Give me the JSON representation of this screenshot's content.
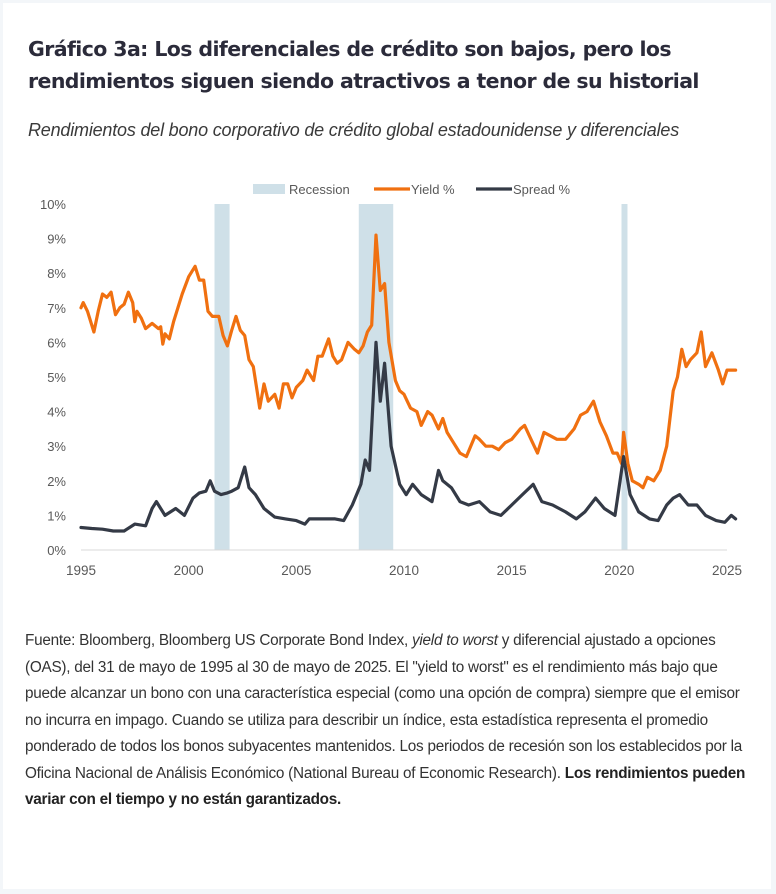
{
  "header": {
    "title": "Gráfico 3a: Los diferenciales de crédito son bajos, pero los rendimientos siguen siendo atractivos a tenor de su historial",
    "subtitle": "Rendimientos del bono corporativo de crédito global estadounidense y diferenciales"
  },
  "colors": {
    "yield": "#f07010",
    "spread": "#343a46",
    "recession": "#cfe0e8",
    "axis_text": "#595959",
    "axis_line": "#d9d9d9"
  },
  "chart_data": {
    "type": "line",
    "title": "",
    "xlabel": "",
    "ylabel": "",
    "xlim": [
      1995,
      2025
    ],
    "ylim": [
      0,
      10
    ],
    "grid": false,
    "legend_position": "top-center",
    "x_ticks": [
      "1995",
      "2000",
      "2005",
      "2010",
      "2015",
      "2020",
      "2025"
    ],
    "y_ticks": [
      "0%",
      "1%",
      "2%",
      "3%",
      "4%",
      "5%",
      "6%",
      "7%",
      "8%",
      "9%",
      "10%"
    ],
    "legend": [
      {
        "name": "Recession",
        "kind": "area"
      },
      {
        "name": "Yield %",
        "kind": "line"
      },
      {
        "name": "Spread %",
        "kind": "line"
      }
    ],
    "recessions": [
      {
        "start": 2001.2,
        "end": 2001.9
      },
      {
        "start": 2007.9,
        "end": 2009.5
      },
      {
        "start": 2020.1,
        "end": 2020.35
      }
    ],
    "series": [
      {
        "name": "Yield %",
        "points": [
          [
            1995.0,
            7.0
          ],
          [
            1995.1,
            7.15
          ],
          [
            1995.3,
            6.9
          ],
          [
            1995.6,
            6.3
          ],
          [
            1995.8,
            6.9
          ],
          [
            1996.0,
            7.4
          ],
          [
            1996.2,
            7.3
          ],
          [
            1996.4,
            7.45
          ],
          [
            1996.6,
            6.8
          ],
          [
            1996.8,
            7.0
          ],
          [
            1997.0,
            7.1
          ],
          [
            1997.2,
            7.45
          ],
          [
            1997.4,
            7.15
          ],
          [
            1997.5,
            6.6
          ],
          [
            1997.6,
            6.9
          ],
          [
            1997.8,
            6.7
          ],
          [
            1998.0,
            6.4
          ],
          [
            1998.3,
            6.55
          ],
          [
            1998.6,
            6.4
          ],
          [
            1998.7,
            6.45
          ],
          [
            1998.8,
            5.95
          ],
          [
            1998.9,
            6.25
          ],
          [
            1999.1,
            6.1
          ],
          [
            1999.3,
            6.6
          ],
          [
            1999.5,
            7.0
          ],
          [
            1999.7,
            7.4
          ],
          [
            2000.0,
            7.9
          ],
          [
            2000.3,
            8.2
          ],
          [
            2000.5,
            7.8
          ],
          [
            2000.7,
            7.8
          ],
          [
            2000.9,
            6.9
          ],
          [
            2001.1,
            6.75
          ],
          [
            2001.4,
            6.75
          ],
          [
            2001.6,
            6.2
          ],
          [
            2001.8,
            5.9
          ],
          [
            2002.0,
            6.35
          ],
          [
            2002.2,
            6.75
          ],
          [
            2002.4,
            6.35
          ],
          [
            2002.6,
            6.2
          ],
          [
            2002.8,
            5.5
          ],
          [
            2003.0,
            5.3
          ],
          [
            2003.2,
            4.5
          ],
          [
            2003.3,
            4.1
          ],
          [
            2003.5,
            4.8
          ],
          [
            2003.7,
            4.3
          ],
          [
            2004.0,
            4.5
          ],
          [
            2004.2,
            4.1
          ],
          [
            2004.4,
            4.8
          ],
          [
            2004.6,
            4.8
          ],
          [
            2004.8,
            4.4
          ],
          [
            2005.0,
            4.7
          ],
          [
            2005.3,
            4.9
          ],
          [
            2005.5,
            5.2
          ],
          [
            2005.8,
            4.9
          ],
          [
            2006.0,
            5.6
          ],
          [
            2006.2,
            5.6
          ],
          [
            2006.5,
            6.1
          ],
          [
            2006.7,
            5.6
          ],
          [
            2006.9,
            5.4
          ],
          [
            2007.1,
            5.5
          ],
          [
            2007.4,
            6.0
          ],
          [
            2007.7,
            5.8
          ],
          [
            2007.9,
            5.7
          ],
          [
            2008.1,
            5.9
          ],
          [
            2008.3,
            6.3
          ],
          [
            2008.5,
            6.5
          ],
          [
            2008.7,
            9.1
          ],
          [
            2008.9,
            7.5
          ],
          [
            2009.1,
            7.7
          ],
          [
            2009.3,
            6.0
          ],
          [
            2009.6,
            4.9
          ],
          [
            2009.8,
            4.6
          ],
          [
            2010.0,
            4.5
          ],
          [
            2010.3,
            4.1
          ],
          [
            2010.6,
            4.0
          ],
          [
            2010.8,
            3.6
          ],
          [
            2011.1,
            4.0
          ],
          [
            2011.3,
            3.9
          ],
          [
            2011.6,
            3.5
          ],
          [
            2011.8,
            3.8
          ],
          [
            2012.0,
            3.4
          ],
          [
            2012.3,
            3.1
          ],
          [
            2012.6,
            2.8
          ],
          [
            2012.9,
            2.7
          ],
          [
            2013.3,
            3.3
          ],
          [
            2013.5,
            3.2
          ],
          [
            2013.8,
            3.0
          ],
          [
            2014.1,
            3.0
          ],
          [
            2014.4,
            2.9
          ],
          [
            2014.7,
            3.1
          ],
          [
            2015.0,
            3.2
          ],
          [
            2015.4,
            3.5
          ],
          [
            2015.6,
            3.6
          ],
          [
            2015.9,
            3.2
          ],
          [
            2016.2,
            2.8
          ],
          [
            2016.5,
            3.4
          ],
          [
            2016.8,
            3.3
          ],
          [
            2017.1,
            3.2
          ],
          [
            2017.5,
            3.2
          ],
          [
            2017.9,
            3.5
          ],
          [
            2018.2,
            3.9
          ],
          [
            2018.5,
            4.0
          ],
          [
            2018.8,
            4.3
          ],
          [
            2019.1,
            3.7
          ],
          [
            2019.4,
            3.3
          ],
          [
            2019.7,
            2.8
          ],
          [
            2019.9,
            2.8
          ],
          [
            2020.1,
            2.5
          ],
          [
            2020.2,
            3.4
          ],
          [
            2020.4,
            2.5
          ],
          [
            2020.6,
            2.0
          ],
          [
            2020.9,
            1.9
          ],
          [
            2021.1,
            1.8
          ],
          [
            2021.3,
            2.1
          ],
          [
            2021.6,
            2.0
          ],
          [
            2021.9,
            2.3
          ],
          [
            2022.2,
            3.0
          ],
          [
            2022.5,
            4.6
          ],
          [
            2022.7,
            5.0
          ],
          [
            2022.9,
            5.8
          ],
          [
            2023.1,
            5.3
          ],
          [
            2023.3,
            5.5
          ],
          [
            2023.6,
            5.7
          ],
          [
            2023.8,
            6.3
          ],
          [
            2024.0,
            5.3
          ],
          [
            2024.3,
            5.7
          ],
          [
            2024.6,
            5.2
          ],
          [
            2024.8,
            4.8
          ],
          [
            2025.0,
            5.2
          ],
          [
            2025.4,
            5.2
          ]
        ]
      },
      {
        "name": "Spread %",
        "points": [
          [
            1995.0,
            0.65
          ],
          [
            1995.5,
            0.62
          ],
          [
            1996.0,
            0.6
          ],
          [
            1996.5,
            0.55
          ],
          [
            1997.0,
            0.55
          ],
          [
            1997.5,
            0.75
          ],
          [
            1998.0,
            0.7
          ],
          [
            1998.3,
            1.2
          ],
          [
            1998.5,
            1.4
          ],
          [
            1998.9,
            1.0
          ],
          [
            1999.4,
            1.2
          ],
          [
            1999.8,
            1.0
          ],
          [
            2000.2,
            1.5
          ],
          [
            2000.5,
            1.65
          ],
          [
            2000.8,
            1.7
          ],
          [
            2001.0,
            2.0
          ],
          [
            2001.2,
            1.7
          ],
          [
            2001.5,
            1.6
          ],
          [
            2001.8,
            1.65
          ],
          [
            2002.0,
            1.7
          ],
          [
            2002.3,
            1.8
          ],
          [
            2002.6,
            2.4
          ],
          [
            2002.8,
            1.8
          ],
          [
            2003.1,
            1.6
          ],
          [
            2003.5,
            1.2
          ],
          [
            2004.0,
            0.95
          ],
          [
            2004.5,
            0.9
          ],
          [
            2005.0,
            0.85
          ],
          [
            2005.4,
            0.75
          ],
          [
            2005.6,
            0.9
          ],
          [
            2006.2,
            0.9
          ],
          [
            2006.8,
            0.9
          ],
          [
            2007.2,
            0.85
          ],
          [
            2007.6,
            1.3
          ],
          [
            2008.0,
            1.9
          ],
          [
            2008.2,
            2.6
          ],
          [
            2008.4,
            2.3
          ],
          [
            2008.7,
            6.0
          ],
          [
            2008.9,
            4.3
          ],
          [
            2009.1,
            5.4
          ],
          [
            2009.4,
            3.0
          ],
          [
            2009.8,
            1.9
          ],
          [
            2010.1,
            1.6
          ],
          [
            2010.4,
            1.9
          ],
          [
            2010.8,
            1.6
          ],
          [
            2011.3,
            1.4
          ],
          [
            2011.6,
            2.3
          ],
          [
            2011.8,
            2.0
          ],
          [
            2012.2,
            1.8
          ],
          [
            2012.6,
            1.4
          ],
          [
            2013.0,
            1.3
          ],
          [
            2013.5,
            1.4
          ],
          [
            2014.0,
            1.1
          ],
          [
            2014.5,
            1.0
          ],
          [
            2015.0,
            1.3
          ],
          [
            2015.5,
            1.6
          ],
          [
            2016.0,
            1.9
          ],
          [
            2016.4,
            1.4
          ],
          [
            2016.9,
            1.3
          ],
          [
            2017.5,
            1.1
          ],
          [
            2018.0,
            0.9
          ],
          [
            2018.4,
            1.1
          ],
          [
            2018.9,
            1.5
          ],
          [
            2019.3,
            1.2
          ],
          [
            2019.8,
            1.0
          ],
          [
            2020.2,
            2.7
          ],
          [
            2020.5,
            1.6
          ],
          [
            2020.9,
            1.1
          ],
          [
            2021.4,
            0.9
          ],
          [
            2021.8,
            0.85
          ],
          [
            2022.2,
            1.3
          ],
          [
            2022.5,
            1.5
          ],
          [
            2022.8,
            1.6
          ],
          [
            2023.2,
            1.3
          ],
          [
            2023.6,
            1.3
          ],
          [
            2024.0,
            1.0
          ],
          [
            2024.5,
            0.85
          ],
          [
            2024.9,
            0.8
          ],
          [
            2025.2,
            1.0
          ],
          [
            2025.4,
            0.9
          ]
        ]
      }
    ]
  },
  "footnote": {
    "part1": "Fuente: Bloomberg, Bloomberg US Corporate Bond Index, ",
    "italic": "yield to worst",
    "part2": " y diferencial ajustado a opciones (OAS), del 31 de mayo de 1995 al 30 de mayo de 2025. El \"yield to worst\" es el rendimiento más bajo que puede alcanzar un bono con una característica especial (como una opción de compra) siempre que el emisor no incurra en impago. Cuando se utiliza para describir un índice, esta estadística representa el promedio ponderado de todos los bonos subyacentes mantenidos. Los periodos de recesión son los establecidos por la Oficina Nacional de Análisis Económico (National Bureau of Economic Research). ",
    "bold": "Los rendimientos pueden variar con el tiempo y no están garantizados."
  }
}
